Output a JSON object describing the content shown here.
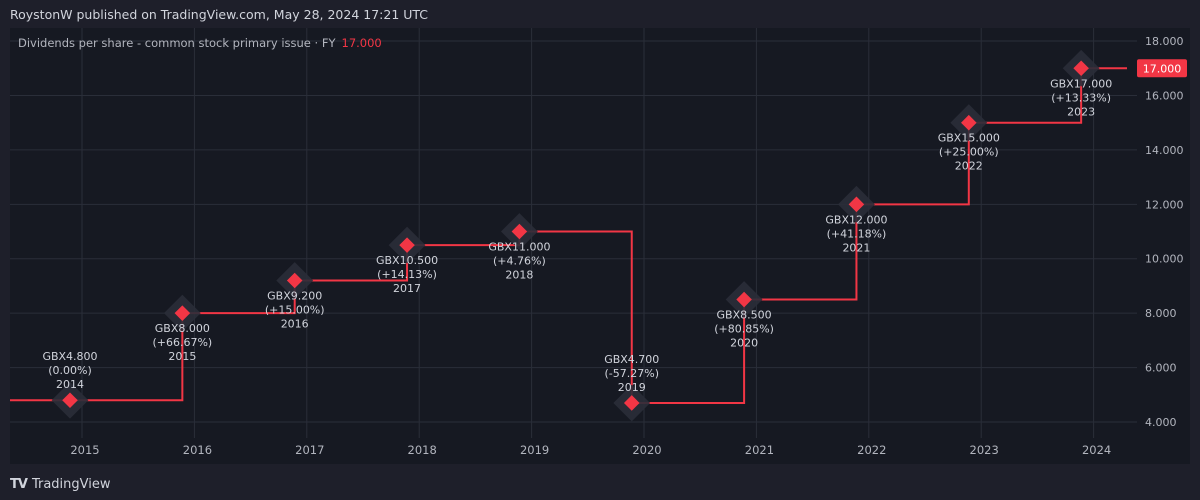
{
  "header": {
    "published_text": "RoystonW published on TradingView.com, May 28, 2024 17:21 UTC"
  },
  "legend": {
    "series_label": "Dividends per share - common stock primary issue · FY",
    "last_value": "17.000"
  },
  "footer": {
    "logo_glyph": "TV",
    "brand": "TradingView"
  },
  "colors": {
    "background": "#1e1f2a",
    "plot_bg": "#161922",
    "grid": "#2a2e39",
    "line": "#f23645",
    "text": "#d1d4dc",
    "axis_text": "#b2b5be"
  },
  "price_tag": "17.000",
  "chart_data": {
    "type": "line",
    "subtype": "step",
    "title": "Dividends per share - common stock primary issue · FY",
    "xlabel": "",
    "ylabel": "",
    "currency": "GBX",
    "x": [
      "2014",
      "2015",
      "2016",
      "2017",
      "2018",
      "2019",
      "2020",
      "2021",
      "2022",
      "2023"
    ],
    "series": [
      {
        "name": "Dividends per share - common stock primary issue · FY",
        "values": [
          4.8,
          8.0,
          9.2,
          10.5,
          11.0,
          4.7,
          8.5,
          12.0,
          15.0,
          17.0
        ],
        "labels": [
          "GBX4.800",
          "GBX8.000",
          "GBX9.200",
          "GBX10.500",
          "GBX11.000",
          "GBX4.700",
          "GBX8.500",
          "GBX12.000",
          "GBX15.000",
          "GBX17.000"
        ],
        "changes": [
          "(0.00%)",
          "(+66.67%)",
          "(+15.00%)",
          "(+14.13%)",
          "(+4.76%)",
          "(-57.27%)",
          "(+80.85%)",
          "(+41.18%)",
          "(+25.00%)",
          "(+13.33%)"
        ]
      }
    ],
    "x_ticks": [
      "2015",
      "2016",
      "2017",
      "2018",
      "2019",
      "2020",
      "2021",
      "2022",
      "2023",
      "2024"
    ],
    "y_ticks": [
      "4.000",
      "6.000",
      "8.000",
      "10.000",
      "12.000",
      "14.000",
      "16.000",
      "18.000"
    ],
    "ylim": [
      3.5,
      18.5
    ],
    "grid": true,
    "legend_position": "top-left",
    "last_value_label": "17.000"
  }
}
